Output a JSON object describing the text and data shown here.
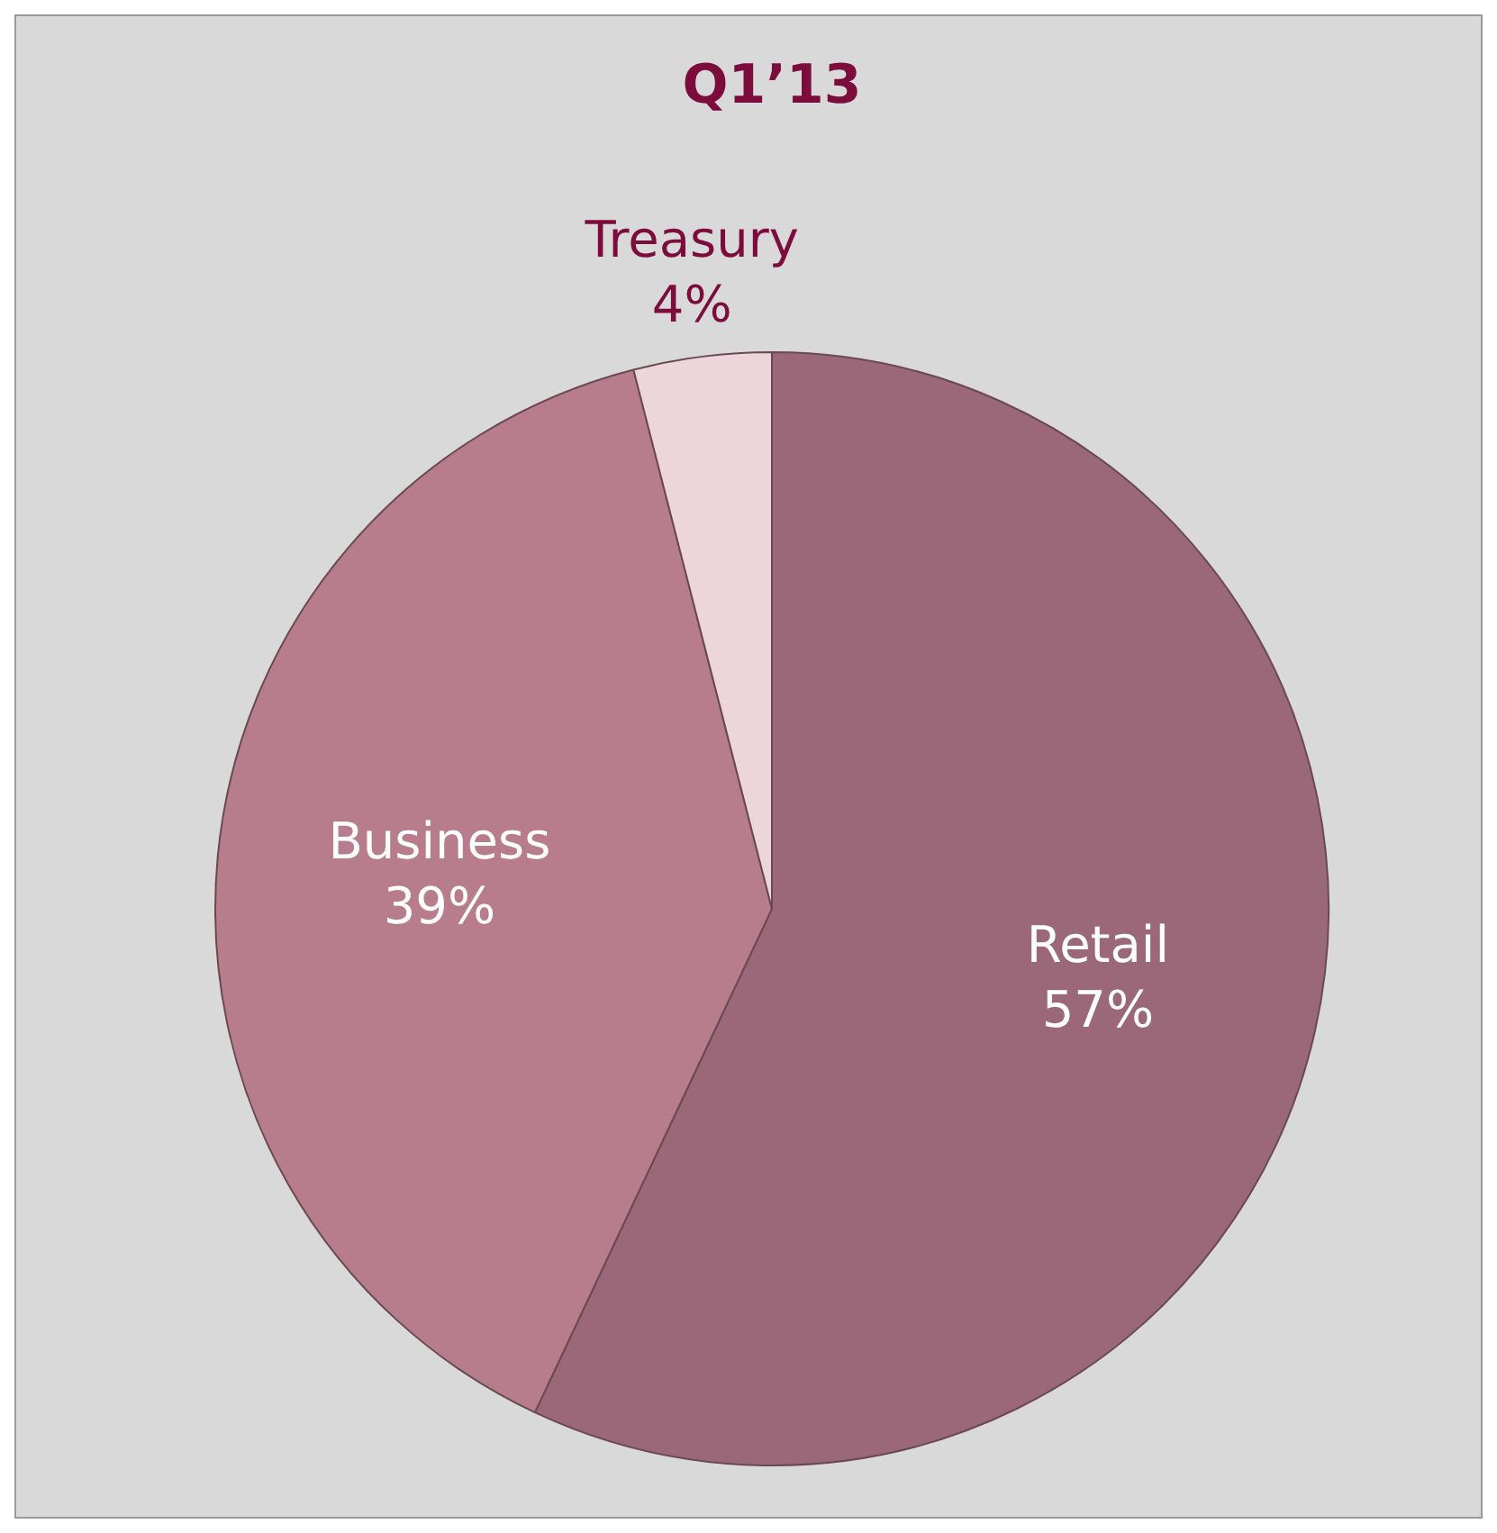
{
  "chart_data": {
    "type": "pie",
    "title": "Q1’13",
    "categories": [
      "Retail",
      "Business",
      "Treasury"
    ],
    "values": [
      57,
      39,
      4
    ],
    "value_labels": [
      "57%",
      "39%",
      "4%"
    ],
    "colors": [
      "#9a6878",
      "#b77d8c",
      "#ecd6dc"
    ],
    "legend": false
  }
}
